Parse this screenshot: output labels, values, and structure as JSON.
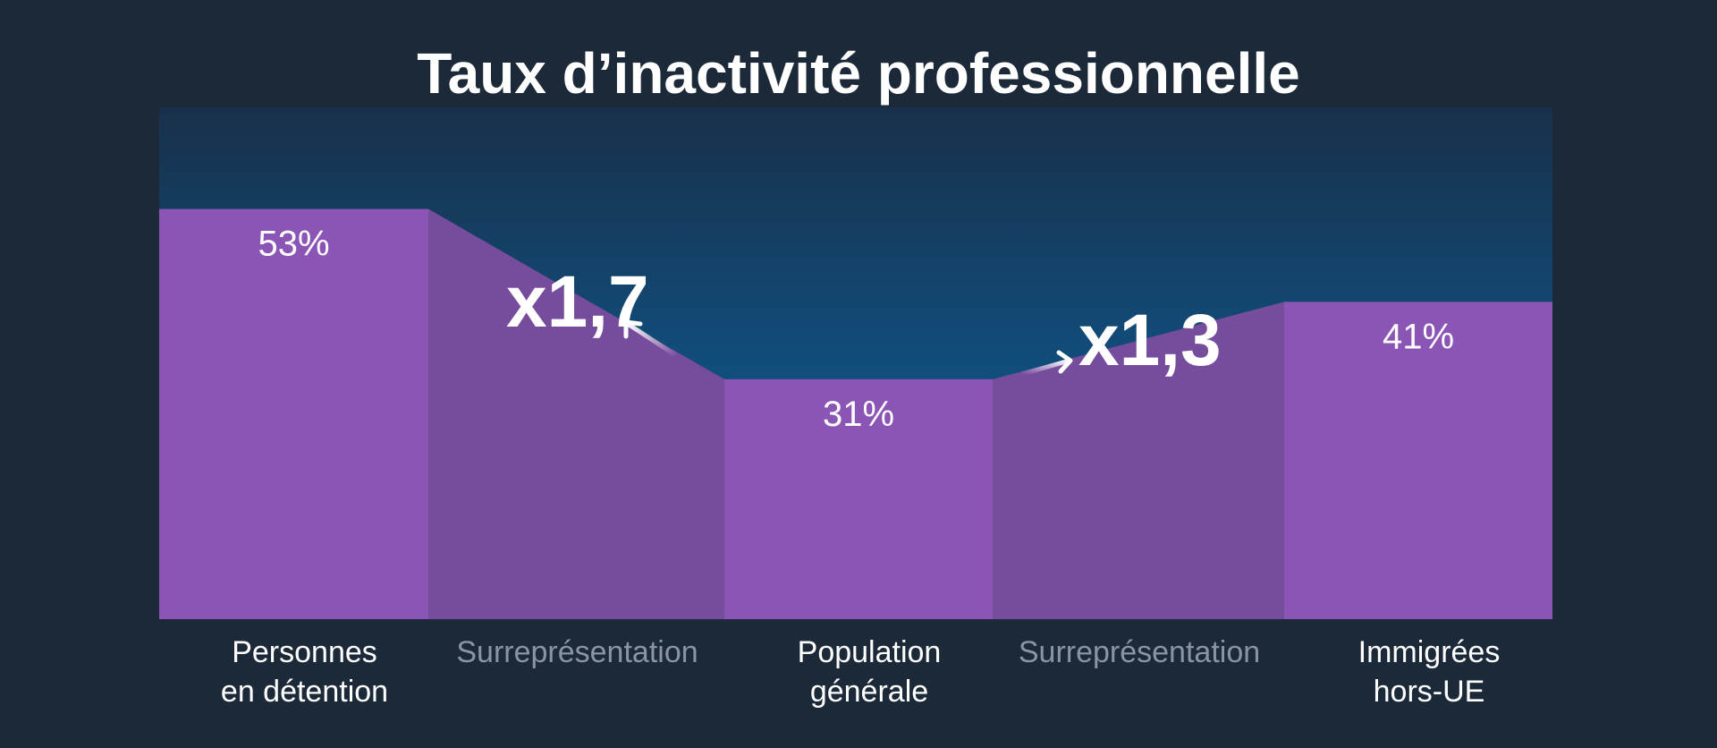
{
  "chart_data": {
    "type": "bar",
    "title": "Taux d’inactivité professionnelle",
    "unit": "%",
    "ylim": [
      0,
      100
    ],
    "bars": [
      {
        "label_lines": [
          "Personnes",
          "en détention"
        ],
        "value": 53,
        "value_label": "53%"
      },
      {
        "label_lines": [
          "Population",
          "générale"
        ],
        "value": 31,
        "value_label": "31%"
      },
      {
        "label_lines": [
          "Immigrées",
          "hors-UE"
        ],
        "value": 41,
        "value_label": "41%"
      }
    ],
    "connectors": [
      {
        "label": "Surreprésentation",
        "multiplier_label": "x1,7"
      },
      {
        "label": "Surreprésentation",
        "multiplier_label": "x1,3"
      }
    ],
    "colors": {
      "background": "#1c2938",
      "bar": "#8b55b6",
      "connector": "#764d9c",
      "glow_top": "#18304a",
      "glow_bottom": "#0a6aac",
      "label": "#ffffff",
      "muted_label": "#8a95a3"
    }
  }
}
